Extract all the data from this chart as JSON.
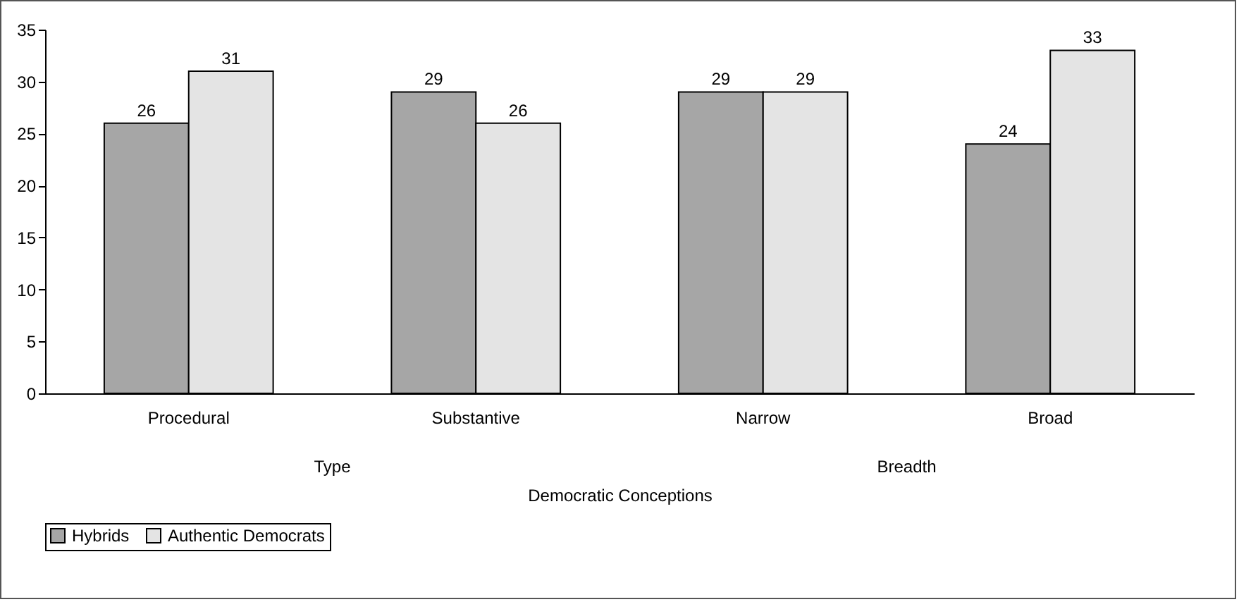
{
  "chart_data": {
    "type": "bar",
    "xlabel": "Democratic Conceptions",
    "categories": [
      "Procedural",
      "Substantive",
      "Narrow",
      "Broad"
    ],
    "series": [
      {
        "name": "Hybrids",
        "color": "#a6a6a6",
        "values": [
          26,
          29,
          29,
          24
        ]
      },
      {
        "name": "Authentic Democrats",
        "color": "#e4e4e4",
        "values": [
          31,
          26,
          29,
          33
        ]
      }
    ],
    "annotations": [
      "Type",
      "Breadth"
    ],
    "ylim": [
      0,
      35
    ],
    "yticks": [
      0,
      5,
      10,
      15,
      20,
      25,
      30,
      35
    ],
    "grid": false,
    "data_labels": true,
    "legend": "bottom"
  }
}
